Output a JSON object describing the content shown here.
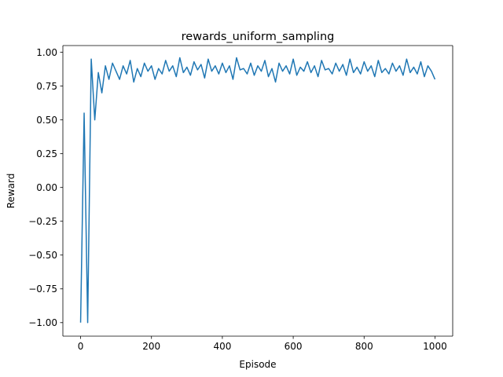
{
  "chart_data": {
    "type": "line",
    "title": "rewards_uniform_sampling",
    "xlabel": "Episode",
    "ylabel": "Reward",
    "xlim": [
      -50,
      1050
    ],
    "ylim": [
      -1.1,
      1.05
    ],
    "xticks": [
      0,
      200,
      400,
      600,
      800,
      1000
    ],
    "xtick_labels": [
      "0",
      "200",
      "400",
      "600",
      "800",
      "1000"
    ],
    "yticks": [
      -1.0,
      -0.75,
      -0.5,
      -0.25,
      0.0,
      0.25,
      0.5,
      0.75,
      1.0
    ],
    "ytick_labels": [
      "−1.00",
      "−0.75",
      "−0.50",
      "−0.25",
      "0.00",
      "0.25",
      "0.50",
      "0.75",
      "1.00"
    ],
    "grid": false,
    "line_color": "#1f77b4",
    "series": [
      {
        "name": "",
        "x_start": 0,
        "x_step": 10,
        "values": [
          -1.0,
          0.55,
          -1.0,
          0.95,
          0.5,
          0.85,
          0.7,
          0.9,
          0.8,
          0.92,
          0.86,
          0.8,
          0.9,
          0.84,
          0.94,
          0.78,
          0.88,
          0.82,
          0.92,
          0.86,
          0.9,
          0.8,
          0.88,
          0.84,
          0.94,
          0.86,
          0.9,
          0.82,
          0.96,
          0.85,
          0.89,
          0.83,
          0.93,
          0.87,
          0.91,
          0.81,
          0.95,
          0.86,
          0.9,
          0.84,
          0.92,
          0.85,
          0.9,
          0.8,
          0.96,
          0.87,
          0.88,
          0.84,
          0.92,
          0.83,
          0.9,
          0.86,
          0.94,
          0.82,
          0.88,
          0.78,
          0.92,
          0.86,
          0.9,
          0.84,
          0.95,
          0.83,
          0.89,
          0.86,
          0.93,
          0.85,
          0.9,
          0.82,
          0.94,
          0.87,
          0.88,
          0.84,
          0.92,
          0.86,
          0.91,
          0.83,
          0.95,
          0.85,
          0.89,
          0.84,
          0.93,
          0.86,
          0.9,
          0.82,
          0.94,
          0.85,
          0.88,
          0.84,
          0.92,
          0.86,
          0.9,
          0.83,
          0.95,
          0.85,
          0.89,
          0.84,
          0.93,
          0.82,
          0.9,
          0.86,
          0.8
        ]
      }
    ]
  }
}
